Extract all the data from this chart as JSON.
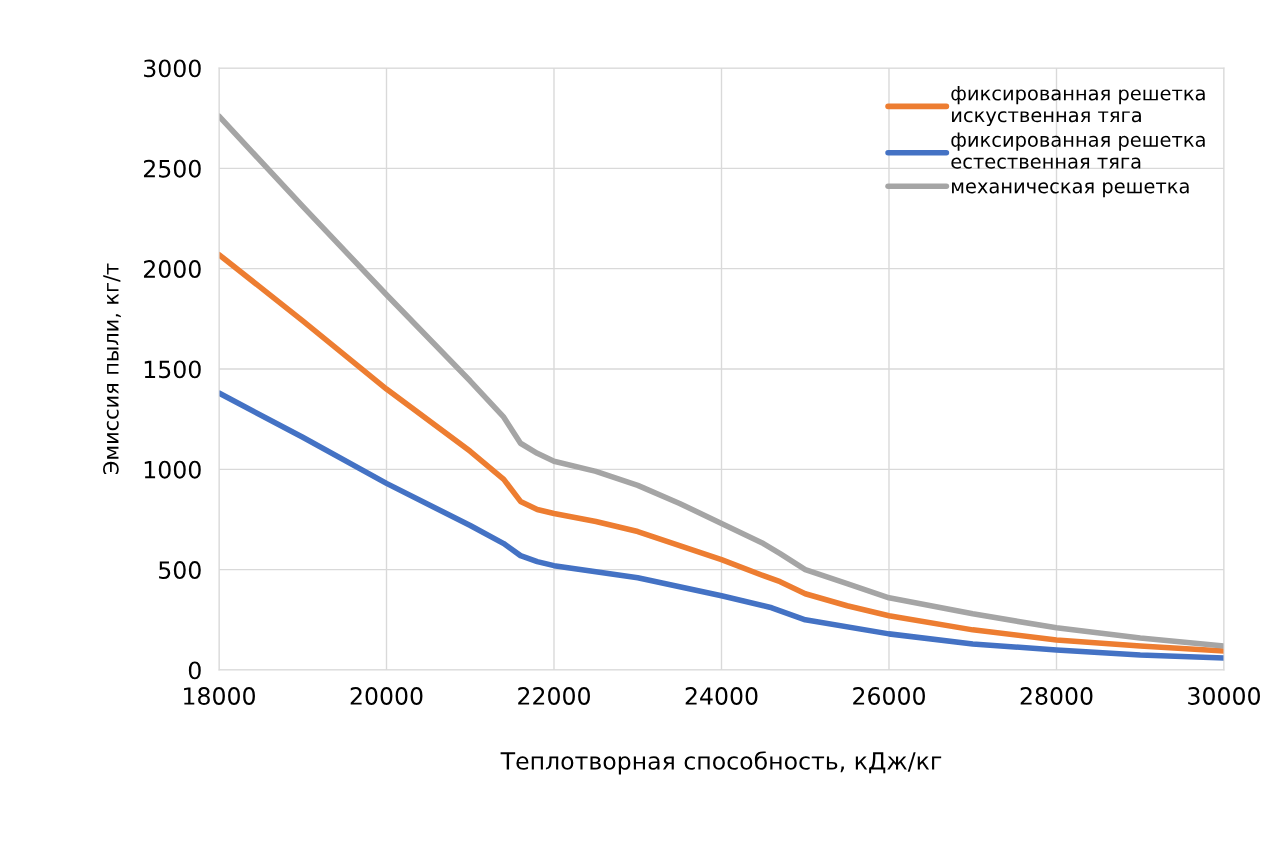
{
  "chart_data": {
    "type": "line",
    "xlabel": "Теплотворная способность, кДж/кг",
    "ylabel": "Эмиссия пыли, кг/т",
    "xlim": [
      18000,
      30000
    ],
    "xticks": [
      18000,
      20000,
      22000,
      24000,
      26000,
      28000,
      30000
    ],
    "ylim": [
      0,
      3000
    ],
    "yticks": [
      0,
      500,
      1000,
      1500,
      2000,
      2500,
      3000
    ],
    "grid": true,
    "legend": "top right",
    "marker": "none",
    "line_style": "solid",
    "series": [
      {
        "name": "фиксированная решетка\nискуственная тяга",
        "color": "#ed7d31",
        "x": [
          18000,
          19000,
          20000,
          21000,
          21400,
          21600,
          21800,
          22000,
          22500,
          23000,
          23500,
          24000,
          24500,
          24700,
          25000,
          25500,
          26000,
          27000,
          28000,
          29000,
          30000
        ],
        "values": [
          2070,
          1740,
          1400,
          1090,
          950,
          840,
          800,
          780,
          740,
          690,
          620,
          550,
          470,
          440,
          380,
          320,
          270,
          200,
          150,
          120,
          95
        ]
      },
      {
        "name": "фиксированная решетка\nестественная тяга",
        "color": "#4472c4",
        "x": [
          18000,
          19000,
          20000,
          21000,
          21400,
          21600,
          21800,
          22000,
          23000,
          24000,
          24600,
          25000,
          26000,
          27000,
          28000,
          29000,
          30000
        ],
        "values": [
          1380,
          1160,
          930,
          720,
          630,
          570,
          540,
          520,
          460,
          370,
          310,
          250,
          180,
          130,
          100,
          75,
          60
        ]
      },
      {
        "name": "механическая решетка",
        "color": "#a5a5a5",
        "x": [
          18000,
          19000,
          20000,
          21000,
          21400,
          21600,
          21800,
          22000,
          22500,
          23000,
          23500,
          24000,
          24500,
          24700,
          25000,
          25500,
          26000,
          27000,
          28000,
          29000,
          30000
        ],
        "values": [
          2760,
          2310,
          1870,
          1440,
          1260,
          1130,
          1080,
          1040,
          990,
          920,
          830,
          730,
          630,
          580,
          500,
          430,
          360,
          280,
          210,
          160,
          120
        ]
      }
    ]
  }
}
